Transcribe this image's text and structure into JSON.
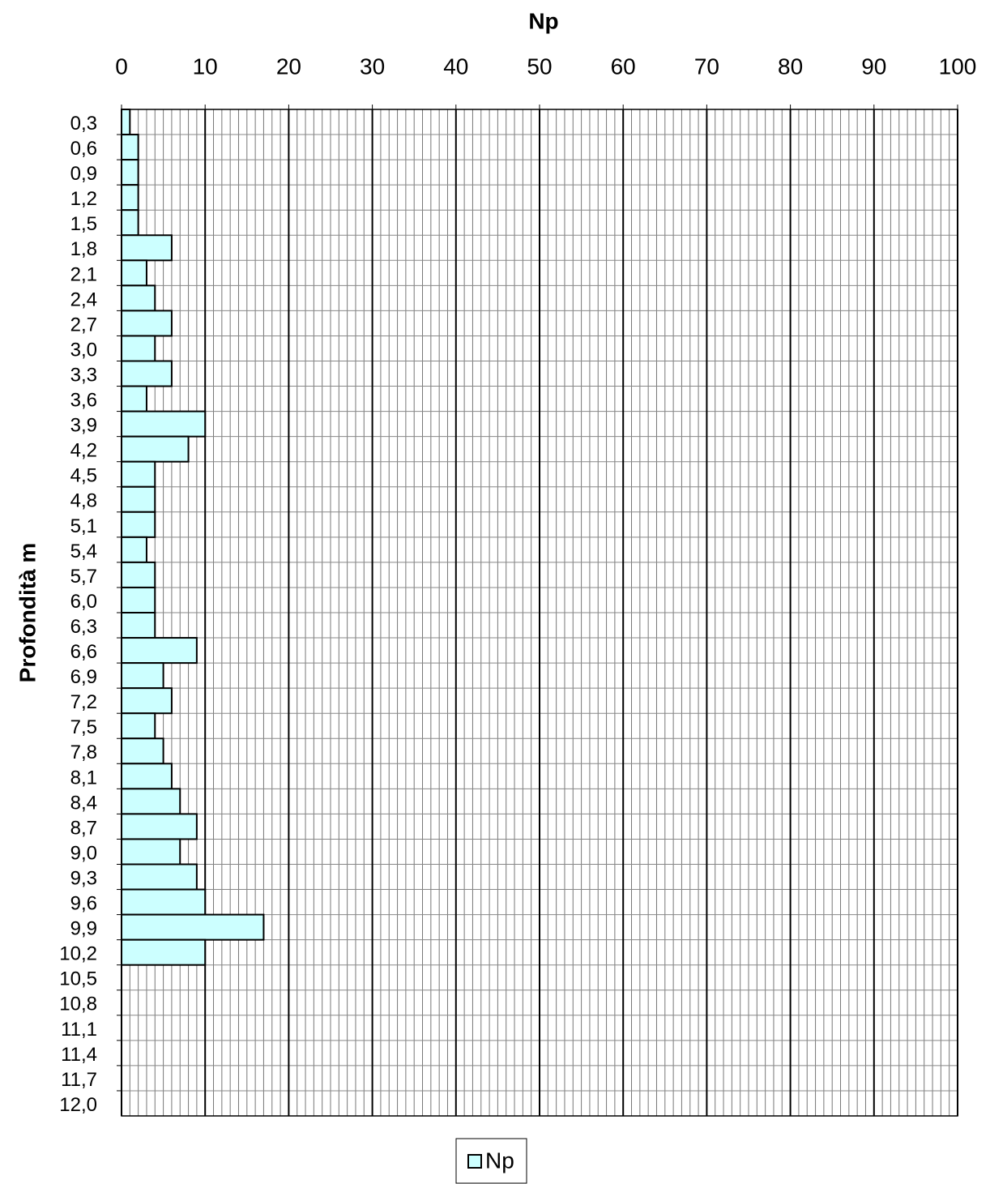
{
  "chart_data": {
    "type": "hbar",
    "x_label": "Np",
    "y_label": "Profondità m",
    "categories": [
      "0,3",
      "0,6",
      "0,9",
      "1,2",
      "1,5",
      "1,8",
      "2,1",
      "2,4",
      "2,7",
      "3,0",
      "3,3",
      "3,6",
      "3,9",
      "4,2",
      "4,5",
      "4,8",
      "5,1",
      "5,4",
      "5,7",
      "6,0",
      "6,3",
      "6,6",
      "6,9",
      "7,2",
      "7,5",
      "7,8",
      "8,1",
      "8,4",
      "8,7",
      "9,0",
      "9,3",
      "9,6",
      "9,9",
      "10,2",
      "10,5",
      "10,8",
      "11,1",
      "11,4",
      "11,7",
      "12,0"
    ],
    "series": [
      {
        "name": "Np",
        "color": "#ccffff",
        "values": [
          1,
          2,
          2,
          2,
          2,
          6,
          3,
          4,
          6,
          4,
          6,
          3,
          10,
          8,
          4,
          4,
          4,
          3,
          4,
          4,
          4,
          9,
          5,
          6,
          4,
          5,
          6,
          7,
          9,
          7,
          9,
          10,
          17,
          10,
          null,
          null,
          null,
          null,
          null,
          null
        ]
      }
    ],
    "xlim": [
      0,
      100
    ],
    "xticks": [
      0,
      10,
      20,
      30,
      40,
      50,
      60,
      70,
      80,
      90,
      100
    ],
    "grid": true,
    "legend": "bottom"
  }
}
